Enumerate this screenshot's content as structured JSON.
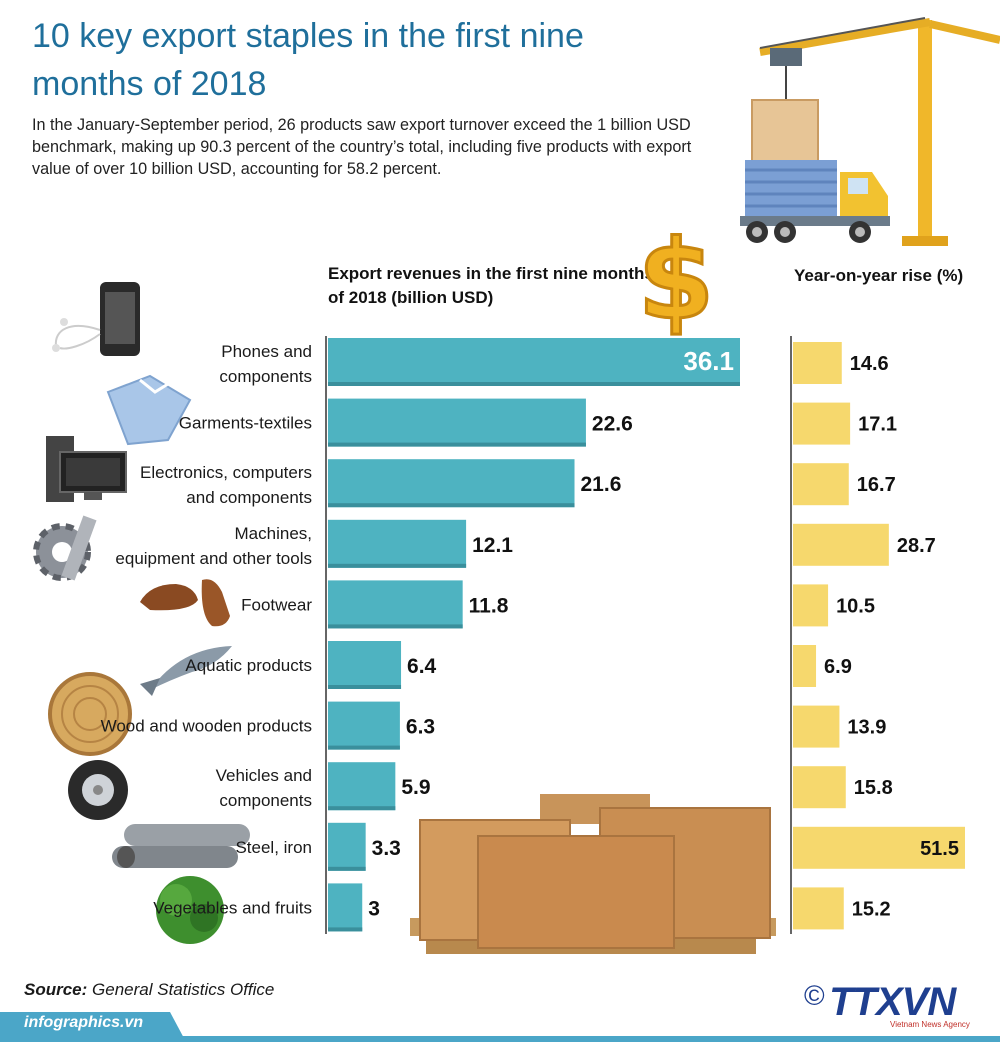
{
  "title": "10 key export staples in the first nine months of 2018",
  "intro": "In the January-September period, 26 products saw export turnover exceed the 1 billion USD benchmark, making up 90.3 percent of the country’s total, including five products with export value of over 10 billion USD, accounting for 58.2 percent.",
  "headers": {
    "export": "Export revenues in the first nine months of 2018 (billion USD)",
    "rise": "Year-on-year rise (%)"
  },
  "colors": {
    "title": "#1f6f9b",
    "export_bar": "#4eb3c1",
    "rise_bar": "#f6d86d",
    "band": "#4ba6c8"
  },
  "chart_data": {
    "type": "bar",
    "categories": [
      [
        "Phones and",
        "components"
      ],
      [
        "Garments-textiles"
      ],
      [
        "Electronics, computers",
        "and components"
      ],
      [
        "Machines,",
        "equipment and other tools"
      ],
      [
        "Footwear"
      ],
      [
        "Aquatic products"
      ],
      [
        "Wood and wooden products"
      ],
      [
        "Vehicles and",
        "components"
      ],
      [
        "Steel, iron"
      ],
      [
        "Vegetables and fruits"
      ]
    ],
    "series": [
      {
        "name": "Export revenues in the first nine months of 2018 (billion USD)",
        "values": [
          36.1,
          22.6,
          21.6,
          12.1,
          11.8,
          6.4,
          6.3,
          5.9,
          3.3,
          3
        ]
      },
      {
        "name": "Year-on-year rise (%)",
        "values": [
          14.6,
          17.1,
          16.7,
          28.7,
          10.5,
          6.9,
          13.9,
          15.8,
          51.5,
          15.2
        ]
      }
    ],
    "value_labels": {
      "export": [
        "36.1",
        "22.6",
        "21.6",
        "12.1",
        "11.8",
        "6.4",
        "6.3",
        "5.9",
        "3.3",
        "3"
      ],
      "rise": [
        "14.6",
        "17.1",
        "16.7",
        "28.7",
        "10.5",
        "6.9",
        "13.9",
        "15.8",
        "51.5",
        "15.2"
      ]
    },
    "legend": "none",
    "grid": false
  },
  "icons": [
    "smartphone-icon",
    "shirt-icon",
    "computer-icon",
    "gear-icon",
    "shoes-icon",
    "fish-icon",
    "wood-log-icon",
    "tire-icon",
    "steel-pipes-icon",
    "vegetable-icon",
    "crane-truck-icon",
    "dollar-icon",
    "boxes-pallet-icon"
  ],
  "footer": {
    "source_label": "Source:",
    "source_text": "General Statistics Office",
    "site": "infographics.vn",
    "copyright": "©",
    "brand": "TTXVN",
    "brand_sub": "Vietnam News Agency"
  }
}
